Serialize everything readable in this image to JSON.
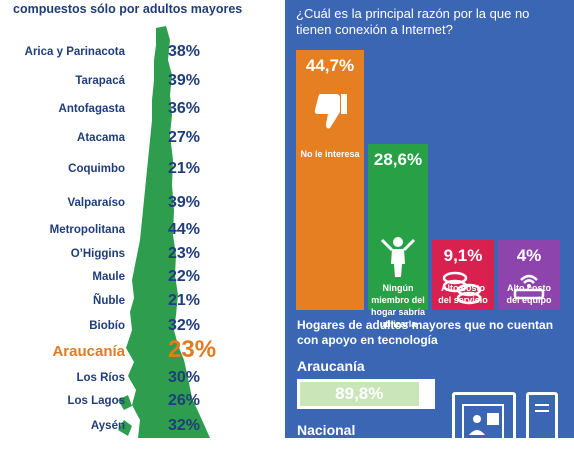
{
  "left": {
    "header": "compuestos sólo por adultos mayores",
    "colors": {
      "map": "#2e9e4e",
      "text": "#1f3d7a",
      "highlight": "#e07b20"
    }
  },
  "chart_data": [
    {
      "type": "table",
      "rows": [
        {
          "region": "Arica y Parinacota",
          "value": "38%"
        },
        {
          "region": "Tarapacá",
          "value": "39%"
        },
        {
          "region": "Antofagasta",
          "value": "36%"
        },
        {
          "region": "Atacama",
          "value": "27%"
        },
        {
          "region": "Coquimbo",
          "value": "21%"
        },
        {
          "region": "Valparaíso",
          "value": "39%"
        },
        {
          "region": "Metropolitana",
          "value": "44%"
        },
        {
          "region": "O’Higgins",
          "value": "23%"
        },
        {
          "region": "Maule",
          "value": "22%"
        },
        {
          "region": "Ñuble",
          "value": "21%"
        },
        {
          "region": "Biobío",
          "value": "32%"
        },
        {
          "region": "Araucanía",
          "value": "23%",
          "highlight": true
        },
        {
          "region": "Los Ríos",
          "value": "30%"
        },
        {
          "region": "Los Lagos",
          "value": "26%"
        },
        {
          "region": "Aysén",
          "value": "32%"
        }
      ]
    },
    {
      "type": "bar",
      "title": "¿Cuál es la principal razón por la que no tienen conexión a Internet?",
      "categories": [
        "No le interesa",
        "Ningún miembro del hogar sabría utilizarla",
        "Alto costo del servicio",
        "Alto costo del equipo"
      ],
      "values": [
        44.7,
        28.6,
        9.1,
        4
      ],
      "value_labels": [
        "44,7%",
        "28,6%",
        "9,1%",
        "4%"
      ],
      "colors": [
        "#e67e22",
        "#27a046",
        "#d9214f",
        "#8e44ad"
      ],
      "icons": [
        "thumbs-down-icon",
        "person-shrug-icon",
        "coins-icon",
        "router-icon"
      ]
    },
    {
      "type": "bar",
      "title": "Hogares de adultos mayores que no cuentan con apoyo en tecnología",
      "categories": [
        "Araucanía",
        "Nacional"
      ],
      "values": [
        89.8,
        null
      ],
      "value_labels": [
        "89,8%",
        ""
      ],
      "colors": [
        "#c8e6b8"
      ]
    }
  ]
}
